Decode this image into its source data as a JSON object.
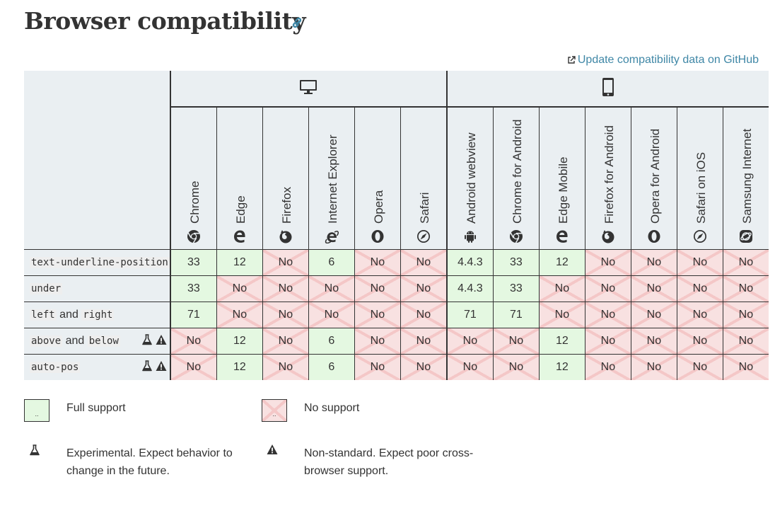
{
  "page": {
    "title": "Browser compatibility"
  },
  "github_link": {
    "label": "Update compatibility data on GitHub"
  },
  "platforms": [
    {
      "name": "desktop",
      "icon": "desktop-icon"
    },
    {
      "name": "mobile",
      "icon": "mobile-icon"
    }
  ],
  "browsers": [
    {
      "name": "Chrome",
      "icon": "chrome-icon"
    },
    {
      "name": "Edge",
      "icon": "edge-icon"
    },
    {
      "name": "Firefox",
      "icon": "firefox-icon"
    },
    {
      "name": "Internet Explorer",
      "icon": "ie-icon"
    },
    {
      "name": "Opera",
      "icon": "opera-icon"
    },
    {
      "name": "Safari",
      "icon": "safari-icon"
    },
    {
      "name": "Android webview",
      "icon": "android-icon"
    },
    {
      "name": "Chrome for Android",
      "icon": "chrome-icon"
    },
    {
      "name": "Edge Mobile",
      "icon": "edge-icon"
    },
    {
      "name": "Firefox for Android",
      "icon": "firefox-icon"
    },
    {
      "name": "Opera for Android",
      "icon": "opera-icon"
    },
    {
      "name": "Safari on iOS",
      "icon": "safari-icon"
    },
    {
      "name": "Samsung Internet",
      "icon": "samsung-icon"
    }
  ],
  "rows": [
    {
      "label": [
        {
          "code": "text-underline-position"
        }
      ],
      "experimental": false,
      "nonstandard": false,
      "cells": [
        "33",
        "12",
        "No",
        "6",
        "No",
        "No",
        "4.4.3",
        "33",
        "12",
        "No",
        "No",
        "No",
        "No"
      ]
    },
    {
      "label": [
        {
          "code": "under"
        }
      ],
      "experimental": false,
      "nonstandard": false,
      "cells": [
        "33",
        "No",
        "No",
        "No",
        "No",
        "No",
        "4.4.3",
        "33",
        "No",
        "No",
        "No",
        "No",
        "No"
      ]
    },
    {
      "label": [
        {
          "code": "left"
        },
        {
          "text": " and "
        },
        {
          "code": "right"
        }
      ],
      "experimental": false,
      "nonstandard": false,
      "cells": [
        "71",
        "No",
        "No",
        "No",
        "No",
        "No",
        "71",
        "71",
        "No",
        "No",
        "No",
        "No",
        "No"
      ]
    },
    {
      "label": [
        {
          "code": "above"
        },
        {
          "text": " and "
        },
        {
          "code": "below"
        }
      ],
      "experimental": true,
      "nonstandard": true,
      "cells": [
        "No",
        "12",
        "No",
        "6",
        "No",
        "No",
        "No",
        "No",
        "12",
        "No",
        "No",
        "No",
        "No"
      ]
    },
    {
      "label": [
        {
          "code": "auto-pos"
        }
      ],
      "experimental": true,
      "nonstandard": true,
      "cells": [
        "No",
        "12",
        "No",
        "6",
        "No",
        "No",
        "No",
        "No",
        "12",
        "No",
        "No",
        "No",
        "No"
      ]
    }
  ],
  "legend": {
    "swatch_text": "..",
    "full_support": "Full support",
    "no_support": "No support",
    "experimental": "Experimental. Expect behavior to change in the future.",
    "nonstandard": "Non-standard. Expect poor cross-browser support."
  },
  "colors": {
    "yes": "#e4f8e1",
    "no": "#f8e1e1",
    "link": "#3f87a6"
  }
}
